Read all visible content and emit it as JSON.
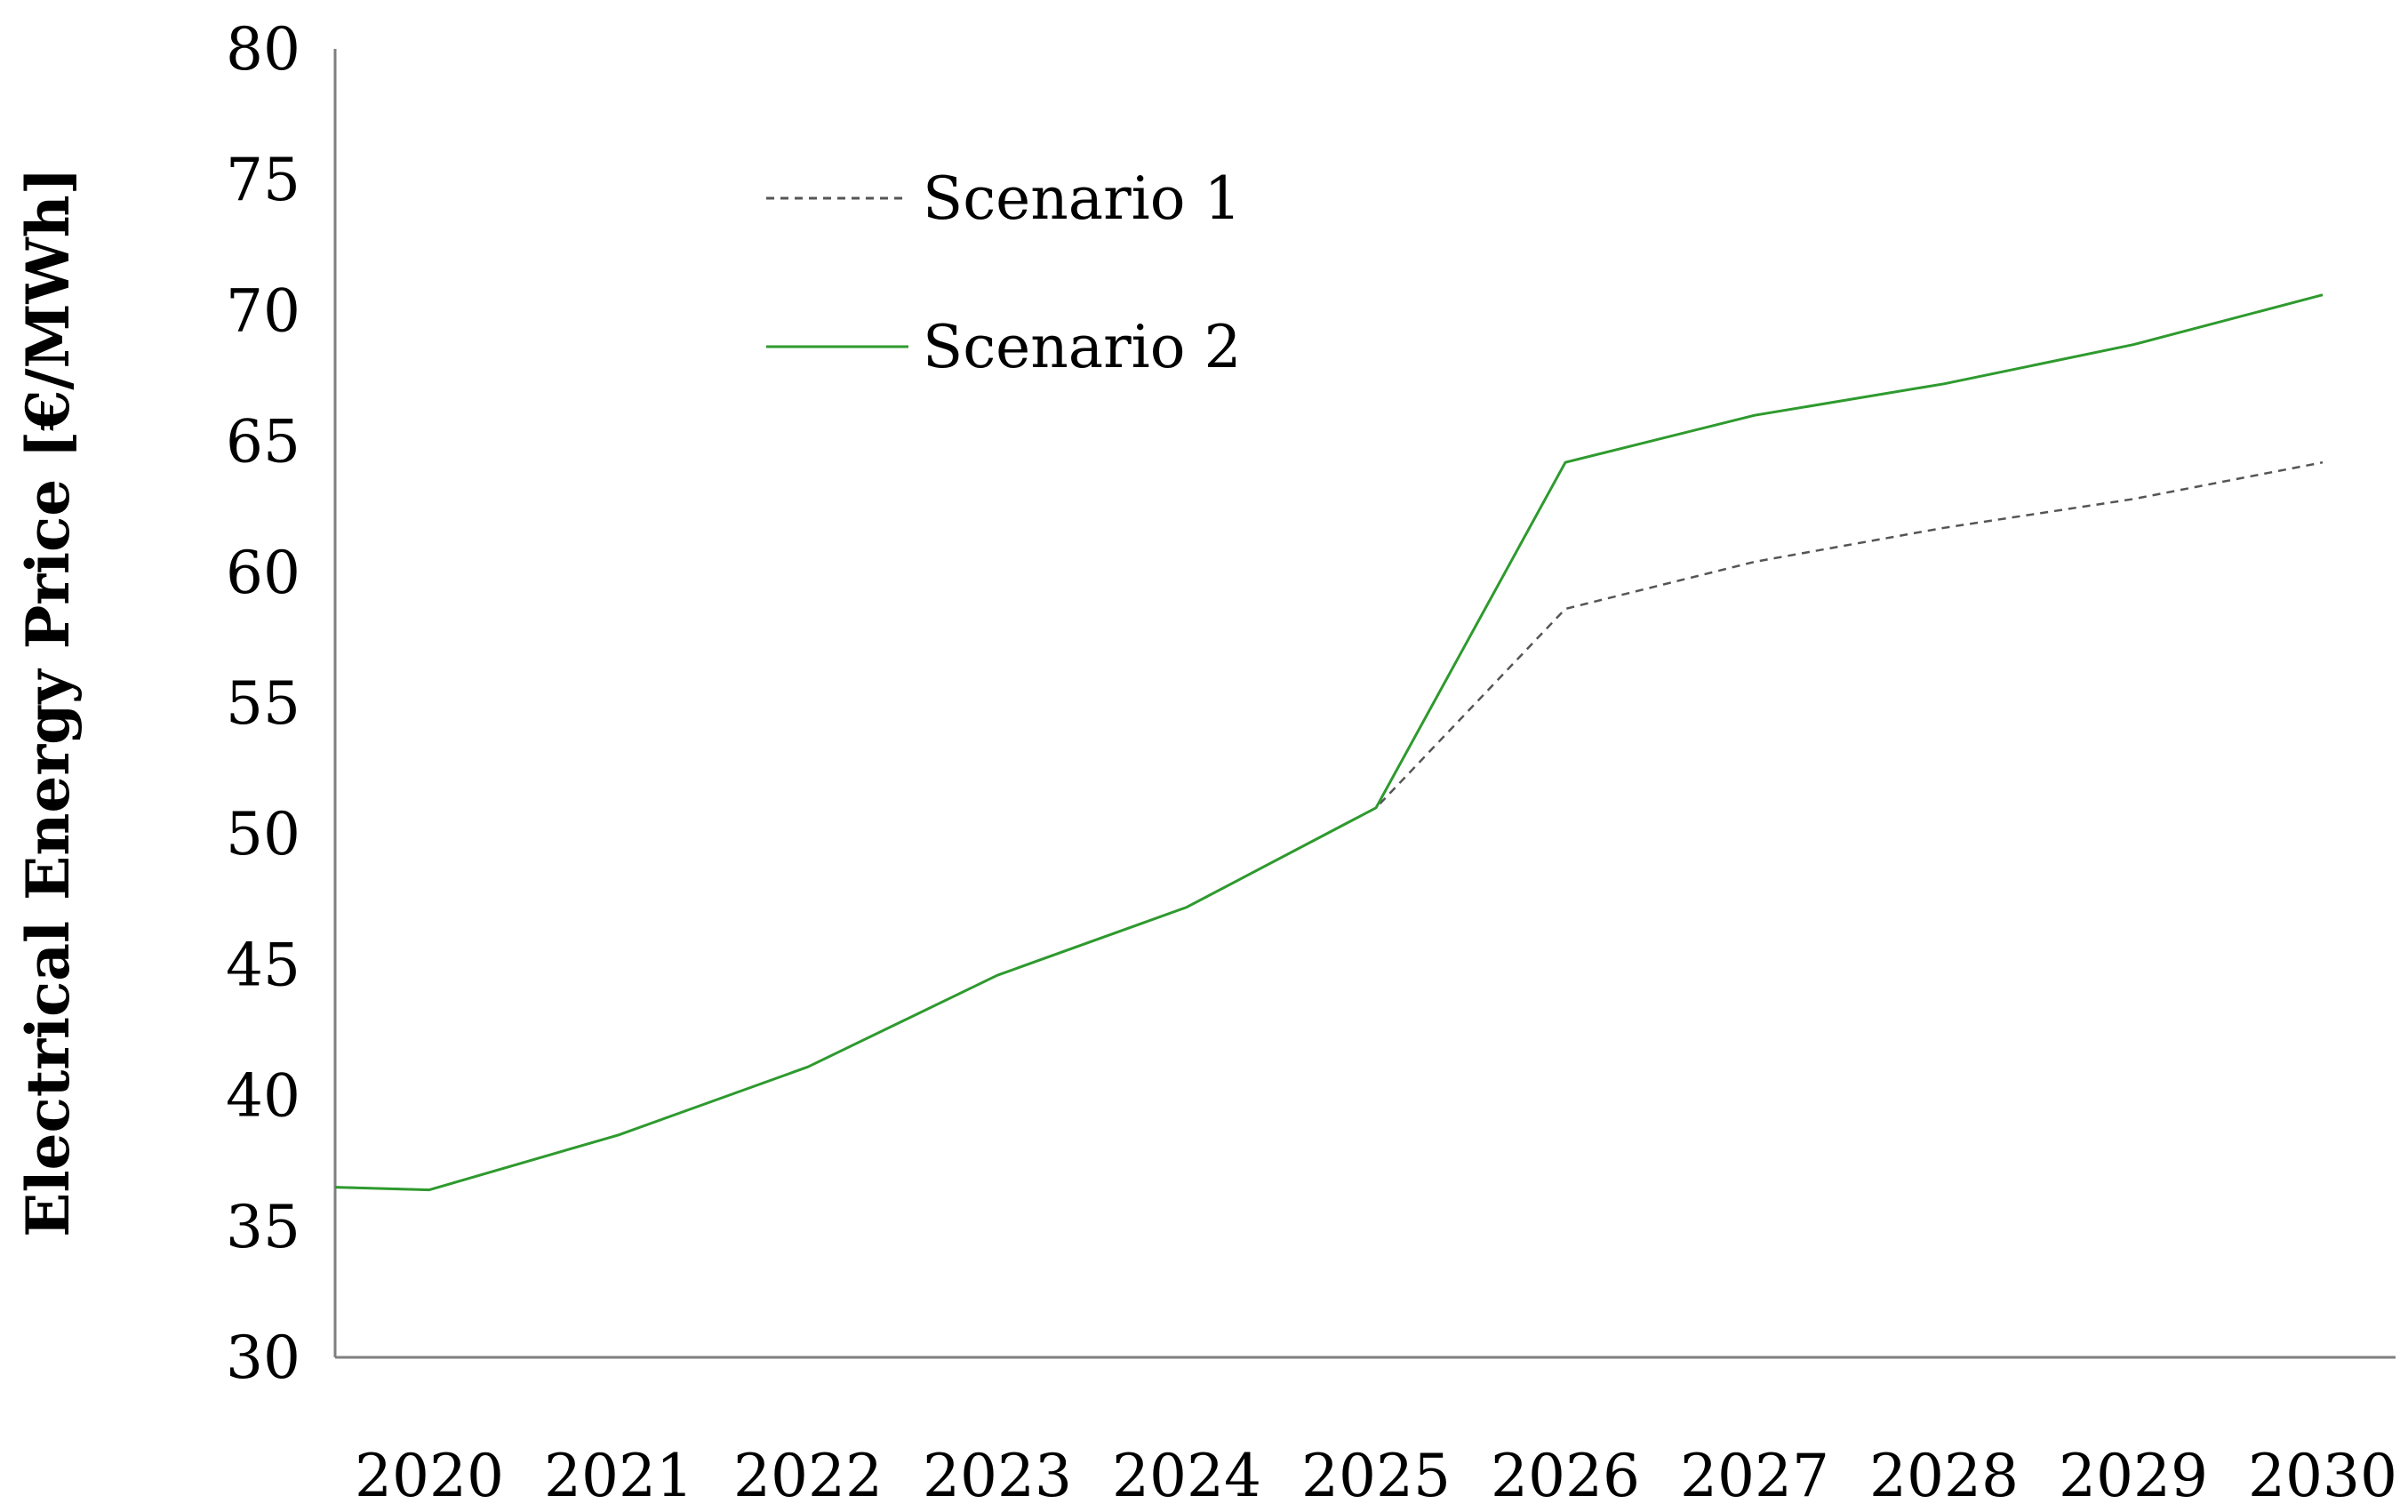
{
  "chart_data": {
    "type": "line",
    "title": "",
    "xlabel": "",
    "ylabel": "Electrical Energy Price [€/MWh]",
    "ylim": [
      30,
      80
    ],
    "yticks": [
      "30",
      "35",
      "40",
      "45",
      "50",
      "55",
      "60",
      "65",
      "70",
      "75",
      "80"
    ],
    "categories": [
      "2020",
      "2021",
      "2022",
      "2023",
      "2024",
      "2025",
      "2026",
      "2027",
      "2028",
      "2029",
      "2030"
    ],
    "series": [
      {
        "name": "Scenario 1",
        "color": "#555555",
        "style": "dashed",
        "values": [
          36.4,
          38.5,
          41.1,
          44.6,
          47.2,
          51.0,
          58.6,
          60.4,
          61.7,
          62.8,
          64.2
        ]
      },
      {
        "name": "Scenario 2",
        "color": "#2e9a2e",
        "style": "solid",
        "values": [
          36.4,
          38.5,
          41.1,
          44.6,
          47.2,
          51.0,
          64.2,
          66.0,
          67.2,
          68.7,
          70.6
        ]
      }
    ],
    "start_value": 36.5,
    "grid": false,
    "legend_position": "top-left"
  }
}
